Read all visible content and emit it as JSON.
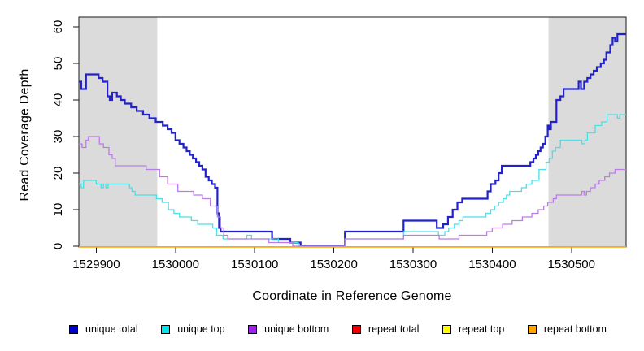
{
  "chart_data": {
    "type": "step-line",
    "title": "",
    "xlabel": "Coordinate in Reference Genome",
    "ylabel": "Read Coverage Depth",
    "xlim": [
      1529878,
      1530569
    ],
    "ylim": [
      0,
      60
    ],
    "xticks": [
      1529900,
      1530000,
      1530100,
      1530200,
      1530300,
      1530400,
      1530500
    ],
    "yticks": [
      0,
      10,
      20,
      30,
      40,
      50,
      60
    ],
    "grid": false,
    "legend_position": "bottom-horizontal",
    "shaded_region_color": "#DBDBDB",
    "shaded_regions": [
      {
        "from": 1529878,
        "to": 1529977
      },
      {
        "from": 1530471,
        "to": 1530569
      }
    ],
    "series": [
      {
        "name": "unique total",
        "color": "#0000CC",
        "line_color": "#2222CC",
        "steps": [
          [
            1529878,
            45
          ],
          [
            1529881,
            43
          ],
          [
            1529887,
            47
          ],
          [
            1529903,
            46
          ],
          [
            1529908,
            45
          ],
          [
            1529914,
            41
          ],
          [
            1529917,
            40
          ],
          [
            1529920,
            42
          ],
          [
            1529926,
            41
          ],
          [
            1529931,
            40
          ],
          [
            1529936,
            39
          ],
          [
            1529944,
            38
          ],
          [
            1529951,
            37
          ],
          [
            1529959,
            36
          ],
          [
            1529967,
            35
          ],
          [
            1529975,
            34
          ],
          [
            1529984,
            33
          ],
          [
            1529990,
            32
          ],
          [
            1529995,
            31
          ],
          [
            1530000,
            29
          ],
          [
            1530005,
            28
          ],
          [
            1530010,
            27
          ],
          [
            1530014,
            26
          ],
          [
            1530018,
            25
          ],
          [
            1530022,
            24
          ],
          [
            1530026,
            23
          ],
          [
            1530030,
            22
          ],
          [
            1530034,
            21
          ],
          [
            1530038,
            19
          ],
          [
            1530042,
            18
          ],
          [
            1530046,
            17
          ],
          [
            1530050,
            16
          ],
          [
            1530053,
            9
          ],
          [
            1530055,
            5
          ],
          [
            1530057,
            4
          ],
          [
            1530122,
            2
          ],
          [
            1530145,
            1
          ],
          [
            1530158,
            0
          ],
          [
            1530214,
            4
          ],
          [
            1530288,
            7
          ],
          [
            1530330,
            5
          ],
          [
            1530338,
            6
          ],
          [
            1530344,
            8
          ],
          [
            1530350,
            10
          ],
          [
            1530356,
            12
          ],
          [
            1530362,
            13
          ],
          [
            1530394,
            15
          ],
          [
            1530398,
            17
          ],
          [
            1530404,
            18
          ],
          [
            1530408,
            20
          ],
          [
            1530412,
            22
          ],
          [
            1530448,
            23
          ],
          [
            1530452,
            24
          ],
          [
            1530455,
            25
          ],
          [
            1530458,
            26
          ],
          [
            1530461,
            27
          ],
          [
            1530464,
            28
          ],
          [
            1530467,
            30
          ],
          [
            1530470,
            33
          ],
          [
            1530472,
            32
          ],
          [
            1530474,
            34
          ],
          [
            1530481,
            40
          ],
          [
            1530486,
            41
          ],
          [
            1530490,
            43
          ],
          [
            1530509,
            45
          ],
          [
            1530512,
            43
          ],
          [
            1530516,
            45
          ],
          [
            1530520,
            46
          ],
          [
            1530524,
            47
          ],
          [
            1530528,
            48
          ],
          [
            1530532,
            49
          ],
          [
            1530537,
            50
          ],
          [
            1530541,
            51
          ],
          [
            1530544,
            53
          ],
          [
            1530549,
            55
          ],
          [
            1530552,
            57
          ],
          [
            1530555,
            56
          ],
          [
            1530558,
            58
          ]
        ]
      },
      {
        "name": "unique top",
        "color": "#00E5EE",
        "line_color": "#4ADFE6",
        "steps": [
          [
            1529878,
            17
          ],
          [
            1529881,
            16
          ],
          [
            1529884,
            18
          ],
          [
            1529900,
            17
          ],
          [
            1529906,
            16
          ],
          [
            1529909,
            17
          ],
          [
            1529912,
            16
          ],
          [
            1529915,
            17
          ],
          [
            1529942,
            16
          ],
          [
            1529945,
            15
          ],
          [
            1529949,
            14
          ],
          [
            1529976,
            13
          ],
          [
            1529983,
            12
          ],
          [
            1529991,
            10
          ],
          [
            1529998,
            9
          ],
          [
            1530005,
            8
          ],
          [
            1530020,
            7
          ],
          [
            1530028,
            6
          ],
          [
            1530047,
            5
          ],
          [
            1530052,
            3
          ],
          [
            1530060,
            2
          ],
          [
            1530090,
            3
          ],
          [
            1530096,
            2
          ],
          [
            1530130,
            1
          ],
          [
            1530155,
            0
          ],
          [
            1530214,
            2
          ],
          [
            1530288,
            4
          ],
          [
            1530332,
            3
          ],
          [
            1530340,
            4
          ],
          [
            1530345,
            5
          ],
          [
            1530352,
            6
          ],
          [
            1530358,
            7
          ],
          [
            1530363,
            8
          ],
          [
            1530392,
            9
          ],
          [
            1530398,
            10
          ],
          [
            1530403,
            11
          ],
          [
            1530408,
            12
          ],
          [
            1530414,
            13
          ],
          [
            1530418,
            14
          ],
          [
            1530422,
            15
          ],
          [
            1530437,
            16
          ],
          [
            1530443,
            17
          ],
          [
            1530450,
            18
          ],
          [
            1530459,
            21
          ],
          [
            1530468,
            23
          ],
          [
            1530472,
            24
          ],
          [
            1530476,
            26
          ],
          [
            1530480,
            27
          ],
          [
            1530486,
            29
          ],
          [
            1530513,
            28
          ],
          [
            1530517,
            29
          ],
          [
            1530520,
            31
          ],
          [
            1530530,
            33
          ],
          [
            1530538,
            34
          ],
          [
            1530545,
            36
          ],
          [
            1530558,
            35
          ],
          [
            1530561,
            36
          ]
        ]
      },
      {
        "name": "unique bottom",
        "color": "#A020F0",
        "line_color": "#BB7BE8",
        "steps": [
          [
            1529878,
            28
          ],
          [
            1529882,
            27
          ],
          [
            1529887,
            29
          ],
          [
            1529890,
            30
          ],
          [
            1529904,
            28
          ],
          [
            1529909,
            27
          ],
          [
            1529916,
            25
          ],
          [
            1529920,
            24
          ],
          [
            1529924,
            22
          ],
          [
            1529963,
            21
          ],
          [
            1529980,
            19
          ],
          [
            1529990,
            17
          ],
          [
            1530003,
            15
          ],
          [
            1530023,
            14
          ],
          [
            1530034,
            13
          ],
          [
            1530044,
            11
          ],
          [
            1530053,
            8
          ],
          [
            1530057,
            5
          ],
          [
            1530061,
            3
          ],
          [
            1530066,
            2
          ],
          [
            1530118,
            1
          ],
          [
            1530148,
            0
          ],
          [
            1530214,
            2
          ],
          [
            1530288,
            3
          ],
          [
            1530333,
            2
          ],
          [
            1530358,
            3
          ],
          [
            1530393,
            4
          ],
          [
            1530400,
            5
          ],
          [
            1530413,
            6
          ],
          [
            1530425,
            7
          ],
          [
            1530438,
            8
          ],
          [
            1530450,
            9
          ],
          [
            1530458,
            10
          ],
          [
            1530465,
            11
          ],
          [
            1530470,
            12
          ],
          [
            1530477,
            13
          ],
          [
            1530481,
            14
          ],
          [
            1530513,
            15
          ],
          [
            1530516,
            14
          ],
          [
            1530519,
            15
          ],
          [
            1530524,
            16
          ],
          [
            1530530,
            17
          ],
          [
            1530535,
            18
          ],
          [
            1530542,
            19
          ],
          [
            1530548,
            20
          ],
          [
            1530555,
            21
          ]
        ]
      },
      {
        "name": "repeat total",
        "color": "#EE0000",
        "line_color": "#EE0000",
        "steps": [
          [
            1529878,
            0
          ]
        ]
      },
      {
        "name": "repeat top",
        "color": "#FFFF00",
        "line_color": "#FFEE00",
        "steps": [
          [
            1529878,
            0
          ]
        ]
      },
      {
        "name": "repeat bottom",
        "color": "#FFA500",
        "line_color": "#FFA500",
        "steps": [
          [
            1529878,
            0
          ]
        ]
      }
    ]
  }
}
